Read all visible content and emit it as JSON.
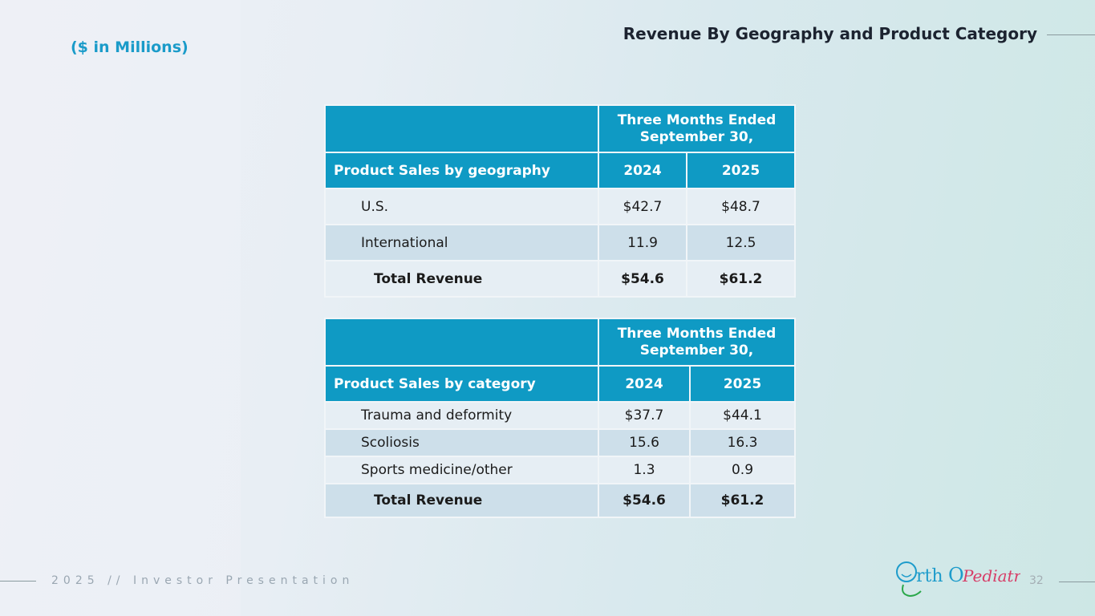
{
  "header": {
    "subtitle": "($ in Millions)",
    "title": "Revenue By Geography and Product Category"
  },
  "geography_table": {
    "period_header": "Three Months Ended September 30,",
    "label_header": "Product Sales by geography",
    "years": [
      "2024",
      "2025"
    ],
    "rows": [
      {
        "label": "U.S.",
        "v2024": "$42.7",
        "v2025": "$48.7"
      },
      {
        "label": "International",
        "v2024": "11.9",
        "v2025": "12.5"
      }
    ],
    "total": {
      "label": "Total Revenue",
      "v2024": "$54.6",
      "v2025": "$61.2"
    }
  },
  "category_table": {
    "period_header": "Three Months Ended September 30,",
    "label_header": "Product Sales by category",
    "years": [
      "2024",
      "2025"
    ],
    "rows": [
      {
        "label": "Trauma and deformity",
        "v2024": "$37.7",
        "v2025": "$44.1"
      },
      {
        "label": "Scoliosis",
        "v2024": "15.6",
        "v2025": "16.3"
      },
      {
        "label": "Sports medicine/other",
        "v2024": "1.3",
        "v2025": "0.9"
      }
    ],
    "total": {
      "label": "Total Revenue",
      "v2024": "$54.6",
      "v2025": "$61.2"
    }
  },
  "footer": {
    "text": "2025 // Investor Presentation",
    "page": "32",
    "logo_text": "OrthoPediatrics"
  }
}
